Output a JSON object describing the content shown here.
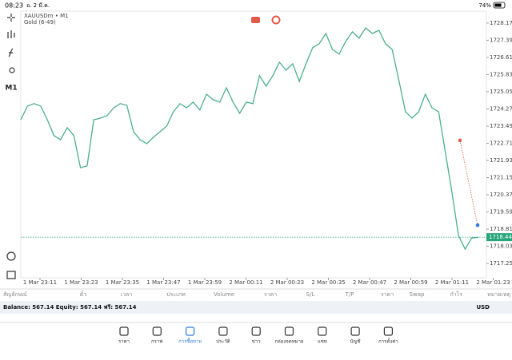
{
  "status_bar": {
    "time": "08:23",
    "date": "อ. 2 มี.ค.",
    "battery": "74%"
  },
  "toolbar": {
    "timeframe": "M1"
  },
  "chart_data": {
    "type": "line",
    "title": "XAUUSDm • M1",
    "subtitle": "Gold (6-49)",
    "values": [
      1723.78,
      1724.4,
      1724.51,
      1724.4,
      1723.78,
      1723.06,
      1722.87,
      1723.42,
      1723.06,
      1721.6,
      1721.68,
      1723.78,
      1723.85,
      1723.96,
      1724.32,
      1724.51,
      1724.43,
      1723.24,
      1722.87,
      1722.69,
      1722.98,
      1723.24,
      1723.49,
      1724.14,
      1724.51,
      1724.32,
      1724.58,
      1724.22,
      1724.94,
      1724.69,
      1724.58,
      1725.23,
      1724.58,
      1724.07,
      1724.58,
      1724.51,
      1725.78,
      1725.3,
      1725.78,
      1726.39,
      1726.03,
      1726.32,
      1725.52,
      1726.32,
      1727.05,
      1727.23,
      1727.7,
      1726.97,
      1726.76,
      1727.34,
      1727.77,
      1727.48,
      1727.95,
      1727.7,
      1727.84,
      1727.23,
      1726.97,
      1725.59,
      1724.14,
      1723.85,
      1724.14,
      1724.94,
      1724.32,
      1724.14,
      1722.33,
      1720.52,
      1718.52,
      1717.9,
      1718.41,
      1718.44
    ],
    "color": "#4caf8a",
    "ylim": [
      1716.6,
      1728.71
    ],
    "yticks": [
      {
        "value": 1728.17,
        "label": "1728.170"
      },
      {
        "value": 1727.39,
        "label": "1727.390"
      },
      {
        "value": 1726.61,
        "label": "1726.610"
      },
      {
        "value": 1725.83,
        "label": "1725.830"
      },
      {
        "value": 1725.05,
        "label": "1725.050"
      },
      {
        "value": 1724.27,
        "label": "1724.270"
      },
      {
        "value": 1723.49,
        "label": "1723.490"
      },
      {
        "value": 1722.71,
        "label": "1722.710"
      },
      {
        "value": 1721.93,
        "label": "1721.930"
      },
      {
        "value": 1721.15,
        "label": "1721.150"
      },
      {
        "value": 1720.37,
        "label": "1720.370"
      },
      {
        "value": 1719.59,
        "label": "1719.590"
      },
      {
        "value": 1718.81,
        "label": "1718.810"
      },
      {
        "value": 1718.03,
        "label": "1718.030"
      },
      {
        "value": 1717.25,
        "label": "1717.250"
      }
    ],
    "xticks": [
      "1 Mar 23:11",
      "1 Mar 23:23",
      "1 Mar 23:35",
      "1 Mar 23:47",
      "1 Mar 23:59",
      "2 Mar 00:11",
      "2 Mar 00:23",
      "2 Mar 00:35",
      "2 Mar 00:47",
      "2 Mar 00:59",
      "2 Mar 01:11",
      "2 Mar 01:23"
    ],
    "current_price": 1718.444,
    "current_price_color": "#26a67a",
    "trendline": {
      "values": [
        1722.84,
        1718.99
      ],
      "colors": [
        "#e05a4a",
        "#2f7de1"
      ]
    }
  },
  "table": {
    "columns": [
      "สัญลักษณ์",
      "ตั๋ว",
      "เวลา",
      "ประเภท",
      "Volume",
      "ราคา",
      "S/L",
      "T/P",
      "ราคา",
      "Swap",
      "กำไร",
      "หมายเหตุ"
    ]
  },
  "account": {
    "summary": "Balance: 567.14 Equity: 567.14 ฟรี: 567.14",
    "currency": "USD"
  },
  "tabs": {
    "items": [
      "ราคา",
      "กราฟ",
      "การซื้อขาย",
      "ประวัติ",
      "ข่าว",
      "กล่องจดหมาย",
      "แชท",
      "บัญชี",
      "การตั้งค่า"
    ],
    "active": 2
  }
}
